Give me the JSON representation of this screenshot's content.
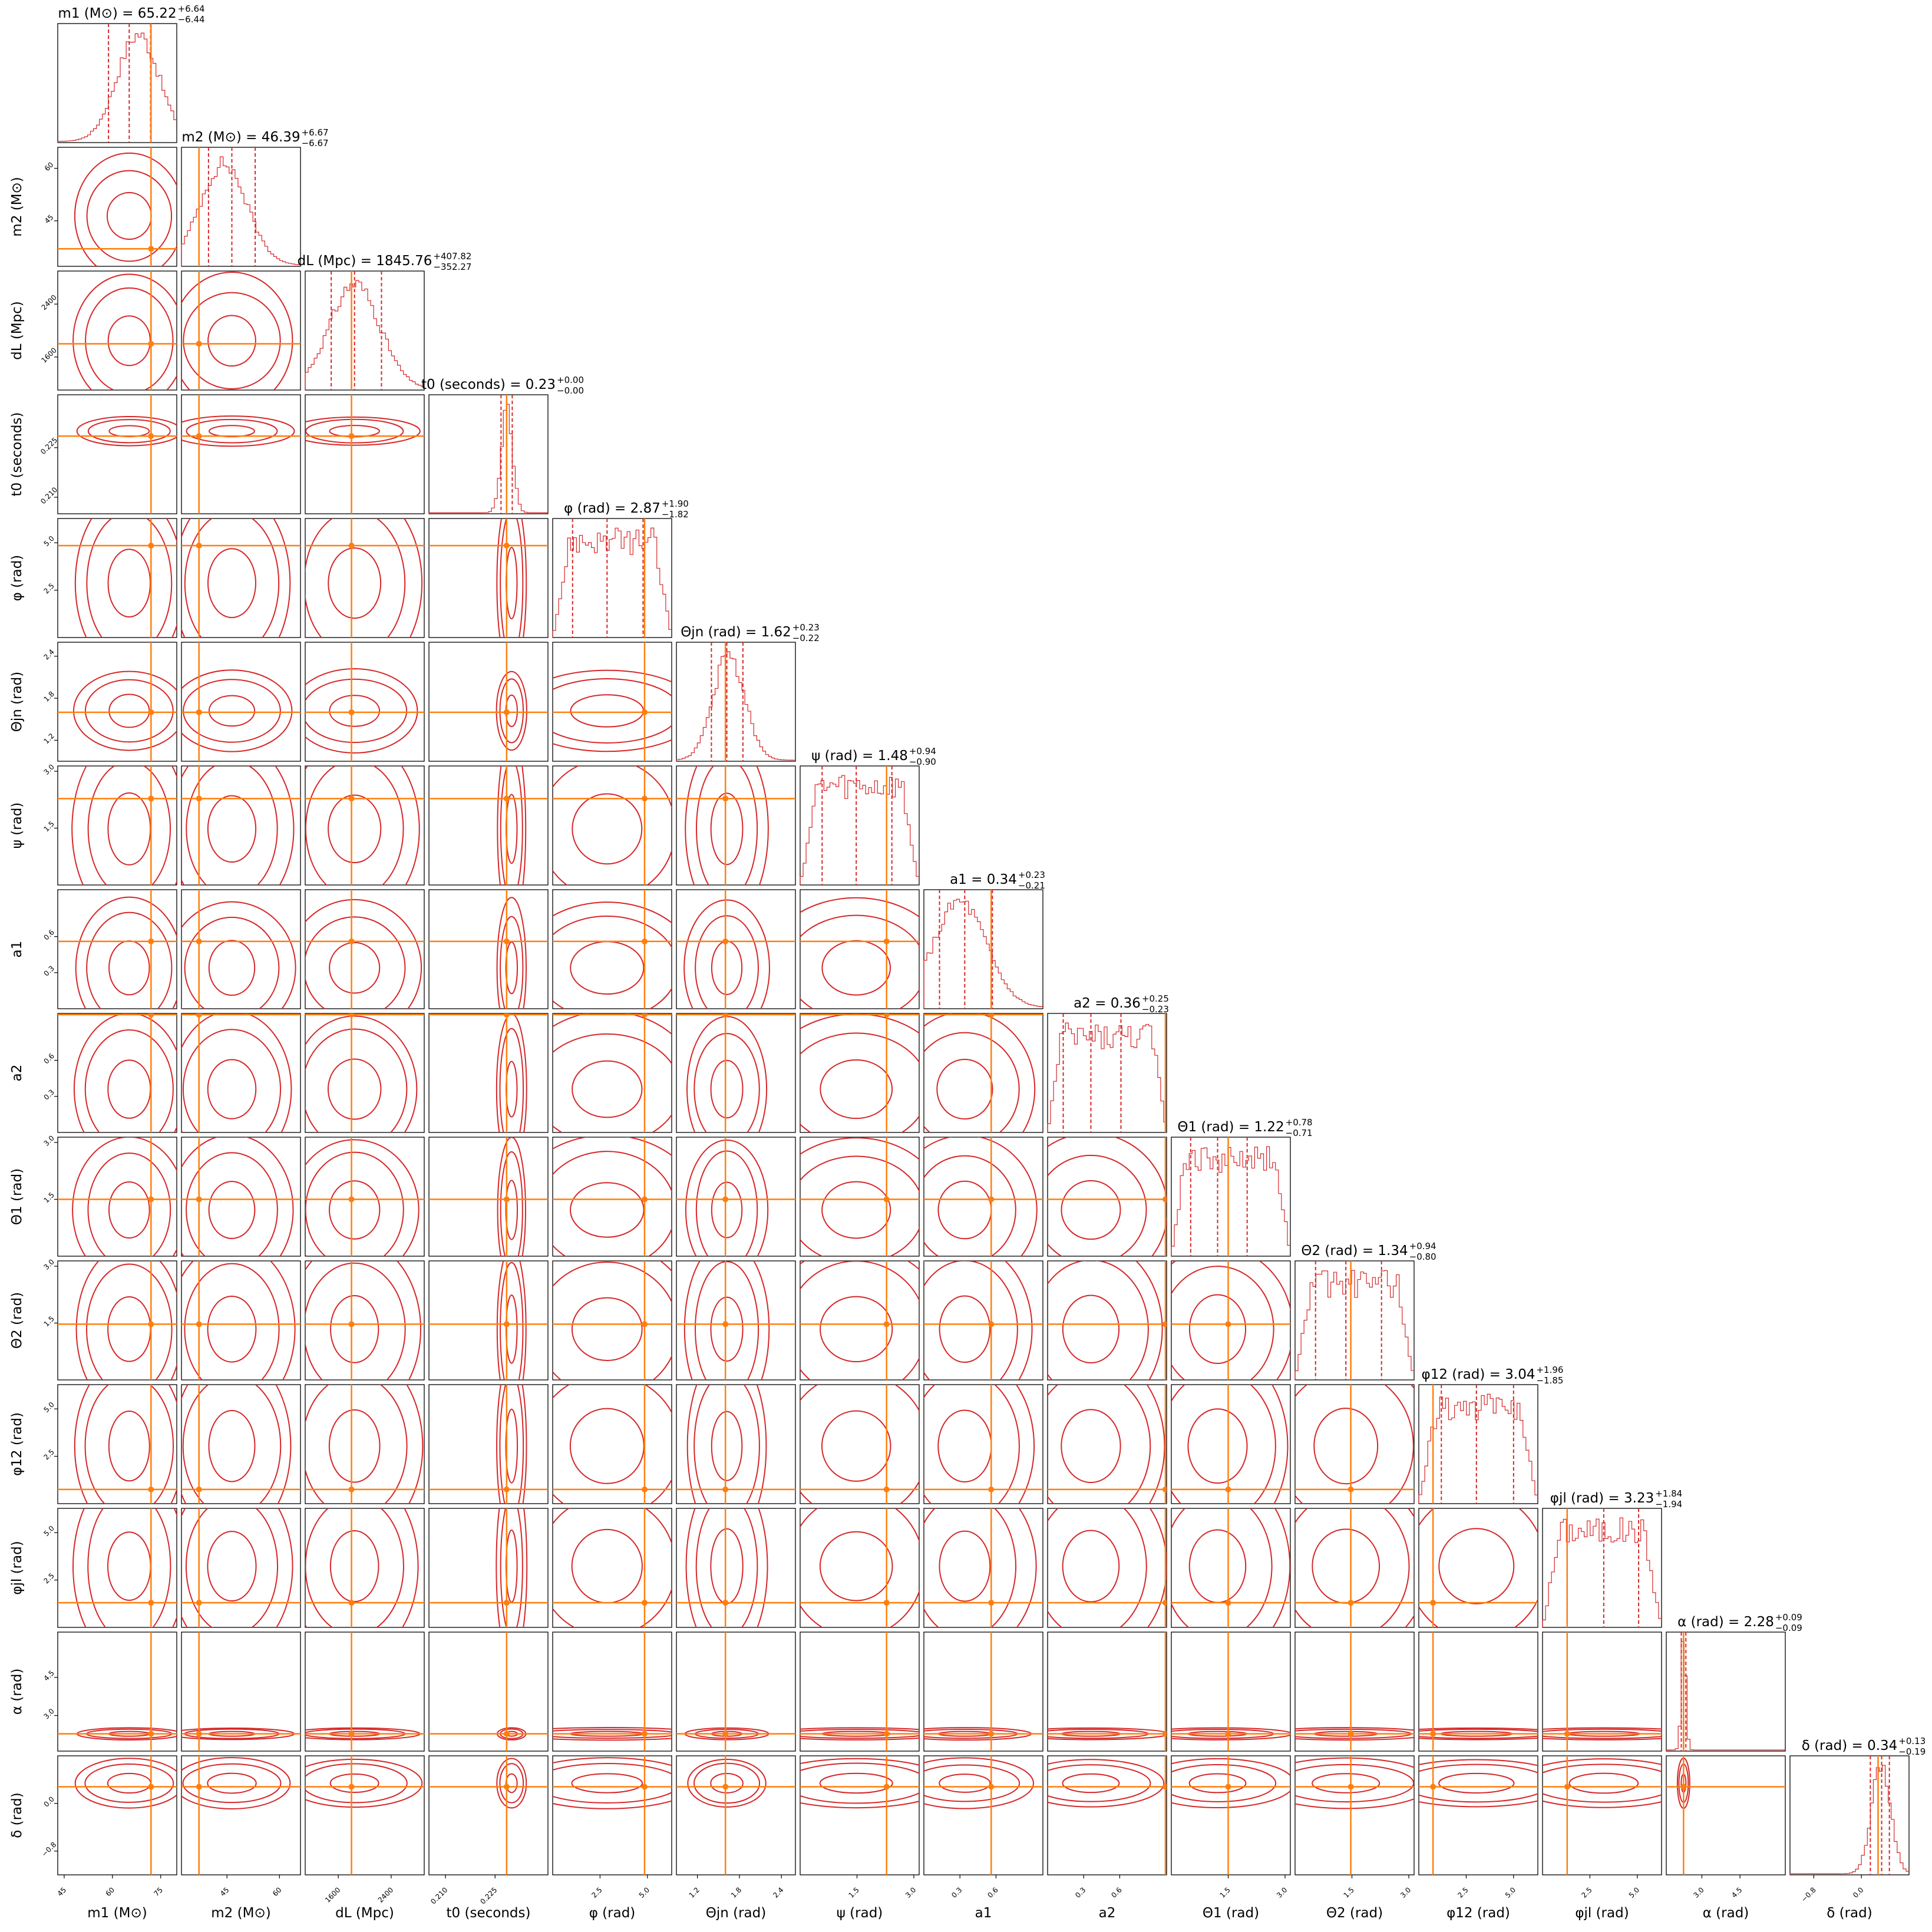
{
  "colors": {
    "posterior": "#d62728",
    "truth": "#ff7f0e",
    "axes": "#000000",
    "background": "#ffffff"
  },
  "chart_data": {
    "type": "corner",
    "grid": false,
    "levels_shown": [
      "68%",
      "95%",
      "99.7%"
    ],
    "quantile_markers": "dashed lines at 16th, 50th and 84th percentiles",
    "params": [
      {
        "key": "m1",
        "label": "m1 (M⊙)",
        "title": "m1 (M⊙) = 65.22",
        "median": 65.22,
        "plus": 6.64,
        "minus": 6.44,
        "plus_txt": "+6.64",
        "minus_txt": "−6.44",
        "range": [
          43,
          80
        ],
        "ticks": [
          45,
          60,
          75
        ],
        "tick_labels": [
          "45",
          "60",
          "75"
        ],
        "truth": 72.0,
        "q": [
          58.78,
          65.22,
          71.86
        ],
        "hist_peak": 68.0
      },
      {
        "key": "m2",
        "label": "m2 (M⊙)",
        "title": "m2 (M⊙) = 46.39",
        "median": 46.39,
        "plus": 6.67,
        "minus": 6.67,
        "plus_txt": "+6.67",
        "minus_txt": "−6.67",
        "range": [
          32,
          66
        ],
        "ticks": [
          45,
          60
        ],
        "tick_labels": [
          "45",
          "60"
        ],
        "truth": 37.0,
        "q": [
          39.72,
          46.39,
          53.06
        ],
        "hist_peak": 44.0
      },
      {
        "key": "dL",
        "label": "dL (Mpc)",
        "title": "dL (Mpc) = 1845.76",
        "median": 1845.76,
        "plus": 407.82,
        "minus": 352.27,
        "plus_txt": "+407.82",
        "minus_txt": "−352.27",
        "range": [
          1100,
          2900
        ],
        "ticks": [
          1600,
          2400
        ],
        "tick_labels": [
          "1600",
          "2400"
        ],
        "truth": 1800.0,
        "q": [
          1493.49,
          1845.76,
          2253.58
        ],
        "hist_peak": 1850.0
      },
      {
        "key": "t0",
        "label": "t0 (seconds)",
        "title": "t0 (seconds) = 0.23",
        "median": 0.23,
        "plus": 0.0,
        "minus": 0.0,
        "plus_txt": "+0.00",
        "minus_txt": "−0.00",
        "range": [
          0.205,
          0.241
        ],
        "ticks": [
          0.21,
          0.225
        ],
        "tick_labels": [
          "0.210",
          "0.225"
        ],
        "truth": 0.2285,
        "q": [
          0.2268,
          0.2285,
          0.2302
        ],
        "hist_peak": 0.2286
      },
      {
        "key": "phi",
        "label": "φ (rad)",
        "title": "φ (rad) = 2.87",
        "median": 2.87,
        "plus": 1.9,
        "minus": 1.82,
        "plus_txt": "+1.90",
        "minus_txt": "−1.82",
        "range": [
          0,
          6.28
        ],
        "ticks": [
          2.5,
          5.0
        ],
        "tick_labels": [
          "2.5",
          "5.0"
        ],
        "truth": 4.85,
        "q": [
          1.05,
          2.87,
          4.77
        ],
        "hist_peak": 3.0
      },
      {
        "key": "thetajn",
        "label": "Θjn (rad)",
        "title": "Θjn (rad) = 1.62",
        "median": 1.62,
        "plus": 0.23,
        "minus": 0.22,
        "plus_txt": "+0.23",
        "minus_txt": "−0.22",
        "range": [
          0.9,
          2.6
        ],
        "ticks": [
          1.2,
          1.8,
          2.4
        ],
        "tick_labels": [
          "1.2",
          "1.8",
          "2.4"
        ],
        "truth": 1.6,
        "q": [
          1.4,
          1.62,
          1.85
        ],
        "hist_peak": 1.65
      },
      {
        "key": "psi",
        "label": "ψ (rad)",
        "title": "ψ (rad) = 1.48",
        "median": 1.48,
        "plus": 0.94,
        "minus": 0.9,
        "plus_txt": "+0.94",
        "minus_txt": "−0.90",
        "range": [
          0,
          3.14
        ],
        "ticks": [
          1.5,
          3.0
        ],
        "tick_labels": [
          "1.5",
          "3.0"
        ],
        "truth": 2.28,
        "q": [
          0.58,
          1.48,
          2.42
        ],
        "hist_peak": 1.4
      },
      {
        "key": "a1",
        "label": "a1",
        "title": "a1 = 0.34",
        "median": 0.34,
        "plus": 0.23,
        "minus": 0.21,
        "plus_txt": "+0.23",
        "minus_txt": "−0.21",
        "range": [
          0,
          0.99
        ],
        "ticks": [
          0.3,
          0.6
        ],
        "tick_labels": [
          "0.3",
          "0.6"
        ],
        "truth": 0.56,
        "q": [
          0.13,
          0.34,
          0.57
        ],
        "hist_peak": 0.3
      },
      {
        "key": "a2",
        "label": "a2",
        "title": "a2 = 0.36",
        "median": 0.36,
        "plus": 0.25,
        "minus": 0.23,
        "plus_txt": "+0.25",
        "minus_txt": "−0.23",
        "range": [
          0,
          0.99
        ],
        "ticks": [
          0.3,
          0.6
        ],
        "tick_labels": [
          "0.3",
          "0.6"
        ],
        "truth": 0.98,
        "q": [
          0.13,
          0.36,
          0.61
        ],
        "hist_peak": 0.35
      },
      {
        "key": "theta1",
        "label": "Θ1 (rad)",
        "title": "Θ1 (rad) = 1.22",
        "median": 1.22,
        "plus": 0.78,
        "minus": 0.71,
        "plus_txt": "+0.78",
        "minus_txt": "−0.71",
        "range": [
          0,
          3.14
        ],
        "ticks": [
          1.5,
          3.0
        ],
        "tick_labels": [
          "1.5",
          "3.0"
        ],
        "truth": 1.5,
        "q": [
          0.51,
          1.22,
          2.0
        ],
        "hist_peak": 1.3
      },
      {
        "key": "theta2",
        "label": "Θ2 (rad)",
        "title": "Θ2 (rad) = 1.34",
        "median": 1.34,
        "plus": 0.94,
        "minus": 0.8,
        "plus_txt": "+0.94",
        "minus_txt": "−0.80",
        "range": [
          0,
          3.14
        ],
        "ticks": [
          1.5,
          3.0
        ],
        "tick_labels": [
          "1.5",
          "3.0"
        ],
        "truth": 1.47,
        "q": [
          0.54,
          1.34,
          2.28
        ],
        "hist_peak": 1.2
      },
      {
        "key": "phi12",
        "label": "φ12 (rad)",
        "title": "φ12 (rad) = 3.04",
        "median": 3.04,
        "plus": 1.96,
        "minus": 1.85,
        "plus_txt": "+1.96",
        "minus_txt": "−1.85",
        "range": [
          0,
          6.28
        ],
        "ticks": [
          2.5,
          5.0
        ],
        "tick_labels": [
          "2.5",
          "5.0"
        ],
        "truth": 0.75,
        "q": [
          1.19,
          3.04,
          5.0
        ],
        "hist_peak": 3.2
      },
      {
        "key": "phijl",
        "label": "φjl (rad)",
        "title": "φjl (rad) = 3.23",
        "median": 3.23,
        "plus": 1.84,
        "minus": 1.94,
        "plus_txt": "+1.84",
        "minus_txt": "−1.94",
        "range": [
          0,
          6.28
        ],
        "ticks": [
          2.5,
          5.0
        ],
        "tick_labels": [
          "2.5",
          "5.0"
        ],
        "truth": 1.3,
        "q": [
          1.29,
          3.23,
          5.07
        ],
        "hist_peak": 3.5
      },
      {
        "key": "alpha",
        "label": "α (rad)",
        "title": "α (rad) = 2.28",
        "median": 2.28,
        "plus": 0.09,
        "minus": 0.09,
        "plus_txt": "+0.09",
        "minus_txt": "−0.09",
        "range": [
          1.6,
          6.28
        ],
        "ticks": [
          3.0,
          4.5
        ],
        "tick_labels": [
          "3.0",
          "4.5"
        ],
        "truth": 2.28,
        "q": [
          2.19,
          2.28,
          2.37
        ],
        "hist_peak": 2.28
      },
      {
        "key": "delta",
        "label": "δ (rad)",
        "title": "δ (rad) = 0.34",
        "median": 0.34,
        "plus": 0.13,
        "minus": 0.19,
        "plus_txt": "+0.13",
        "minus_txt": "−0.19",
        "range": [
          -1.2,
          0.8
        ],
        "ticks": [
          -0.8,
          0.0
        ],
        "tick_labels": [
          "−0.8",
          "0.0"
        ],
        "truth": 0.28,
        "q": [
          0.15,
          0.34,
          0.47
        ],
        "hist_peak": 0.33
      }
    ]
  }
}
